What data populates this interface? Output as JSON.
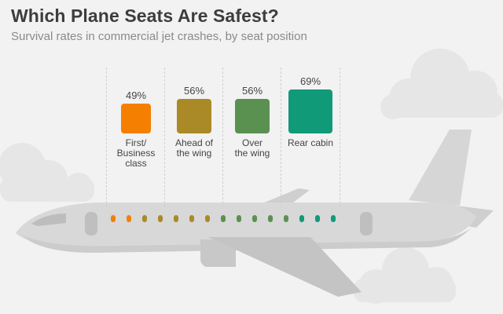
{
  "header": {
    "title": "Which Plane Seats Are Safest?",
    "subtitle": "Survival rates in commercial jet crashes, by seat position"
  },
  "colors": {
    "first": "#f57f00",
    "ahead": "#a98a26",
    "over": "#5a9150",
    "rear": "#109a78",
    "plane": "#d6d6d6",
    "cloud": "#e6e6e6"
  },
  "chart_data": {
    "type": "bar",
    "title": "Which Plane Seats Are Safest?",
    "subtitle": "Survival rates in commercial jet crashes, by seat position",
    "categories": [
      "First/\nBusiness\nclass",
      "Ahead of\nthe wing",
      "Over\nthe wing",
      "Rear cabin"
    ],
    "values": [
      49,
      56,
      56,
      69
    ],
    "value_labels": [
      "49%",
      "56%",
      "56%",
      "69%"
    ],
    "unit": "%",
    "colors": [
      "#f57f00",
      "#a98a26",
      "#5a9150",
      "#109a78"
    ],
    "ylim": [
      0,
      100
    ],
    "grid": false,
    "legend": "none"
  }
}
